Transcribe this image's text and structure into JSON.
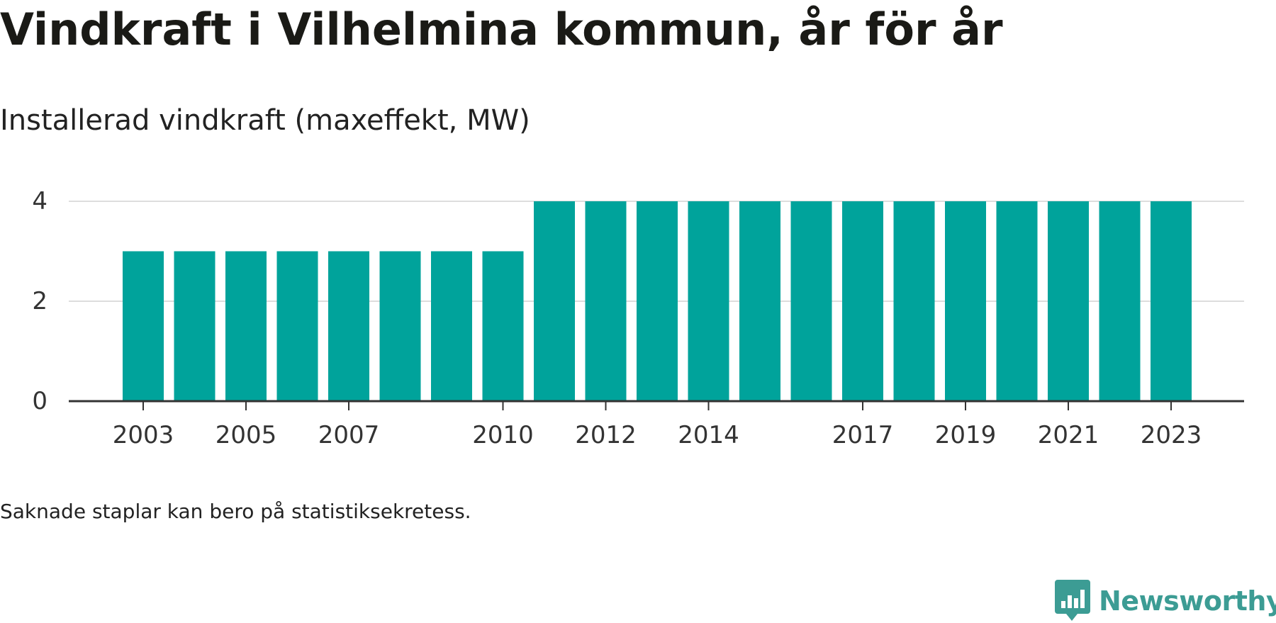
{
  "title": "Vindkraft i Vilhelmina kommun, år för år",
  "subtitle": "Installerad vindkraft (maxeffekt, MW)",
  "footnote": "Saknade staplar kan bero på statistiksekretess.",
  "logo": {
    "name": "Newsworthy",
    "icon": "bar-chart-speech-bubble-icon"
  },
  "colors": {
    "bar": "#00a39b",
    "grid": "#dddddd",
    "axis": "#333333",
    "text": "#333333",
    "logo": "#3c9c94"
  },
  "chart_data": {
    "type": "bar",
    "categories": [
      "2003",
      "2004",
      "2005",
      "2006",
      "2007",
      "2008",
      "2009",
      "2010",
      "2011",
      "2012",
      "2013",
      "2014",
      "2015",
      "2016",
      "2017",
      "2018",
      "2019",
      "2020",
      "2021",
      "2022",
      "2023"
    ],
    "values": [
      3,
      3,
      3,
      3,
      3,
      3,
      3,
      3,
      4,
      4,
      4,
      4,
      4,
      4,
      4,
      4,
      4,
      4,
      4,
      4,
      4
    ],
    "x_tick_labels": [
      "2003",
      "2005",
      "2007",
      "2010",
      "2012",
      "2014",
      "2017",
      "2019",
      "2021",
      "2023"
    ],
    "y_ticks": [
      0,
      2,
      4
    ],
    "ylim": [
      0,
      4
    ],
    "grid": true,
    "legend": "none"
  }
}
